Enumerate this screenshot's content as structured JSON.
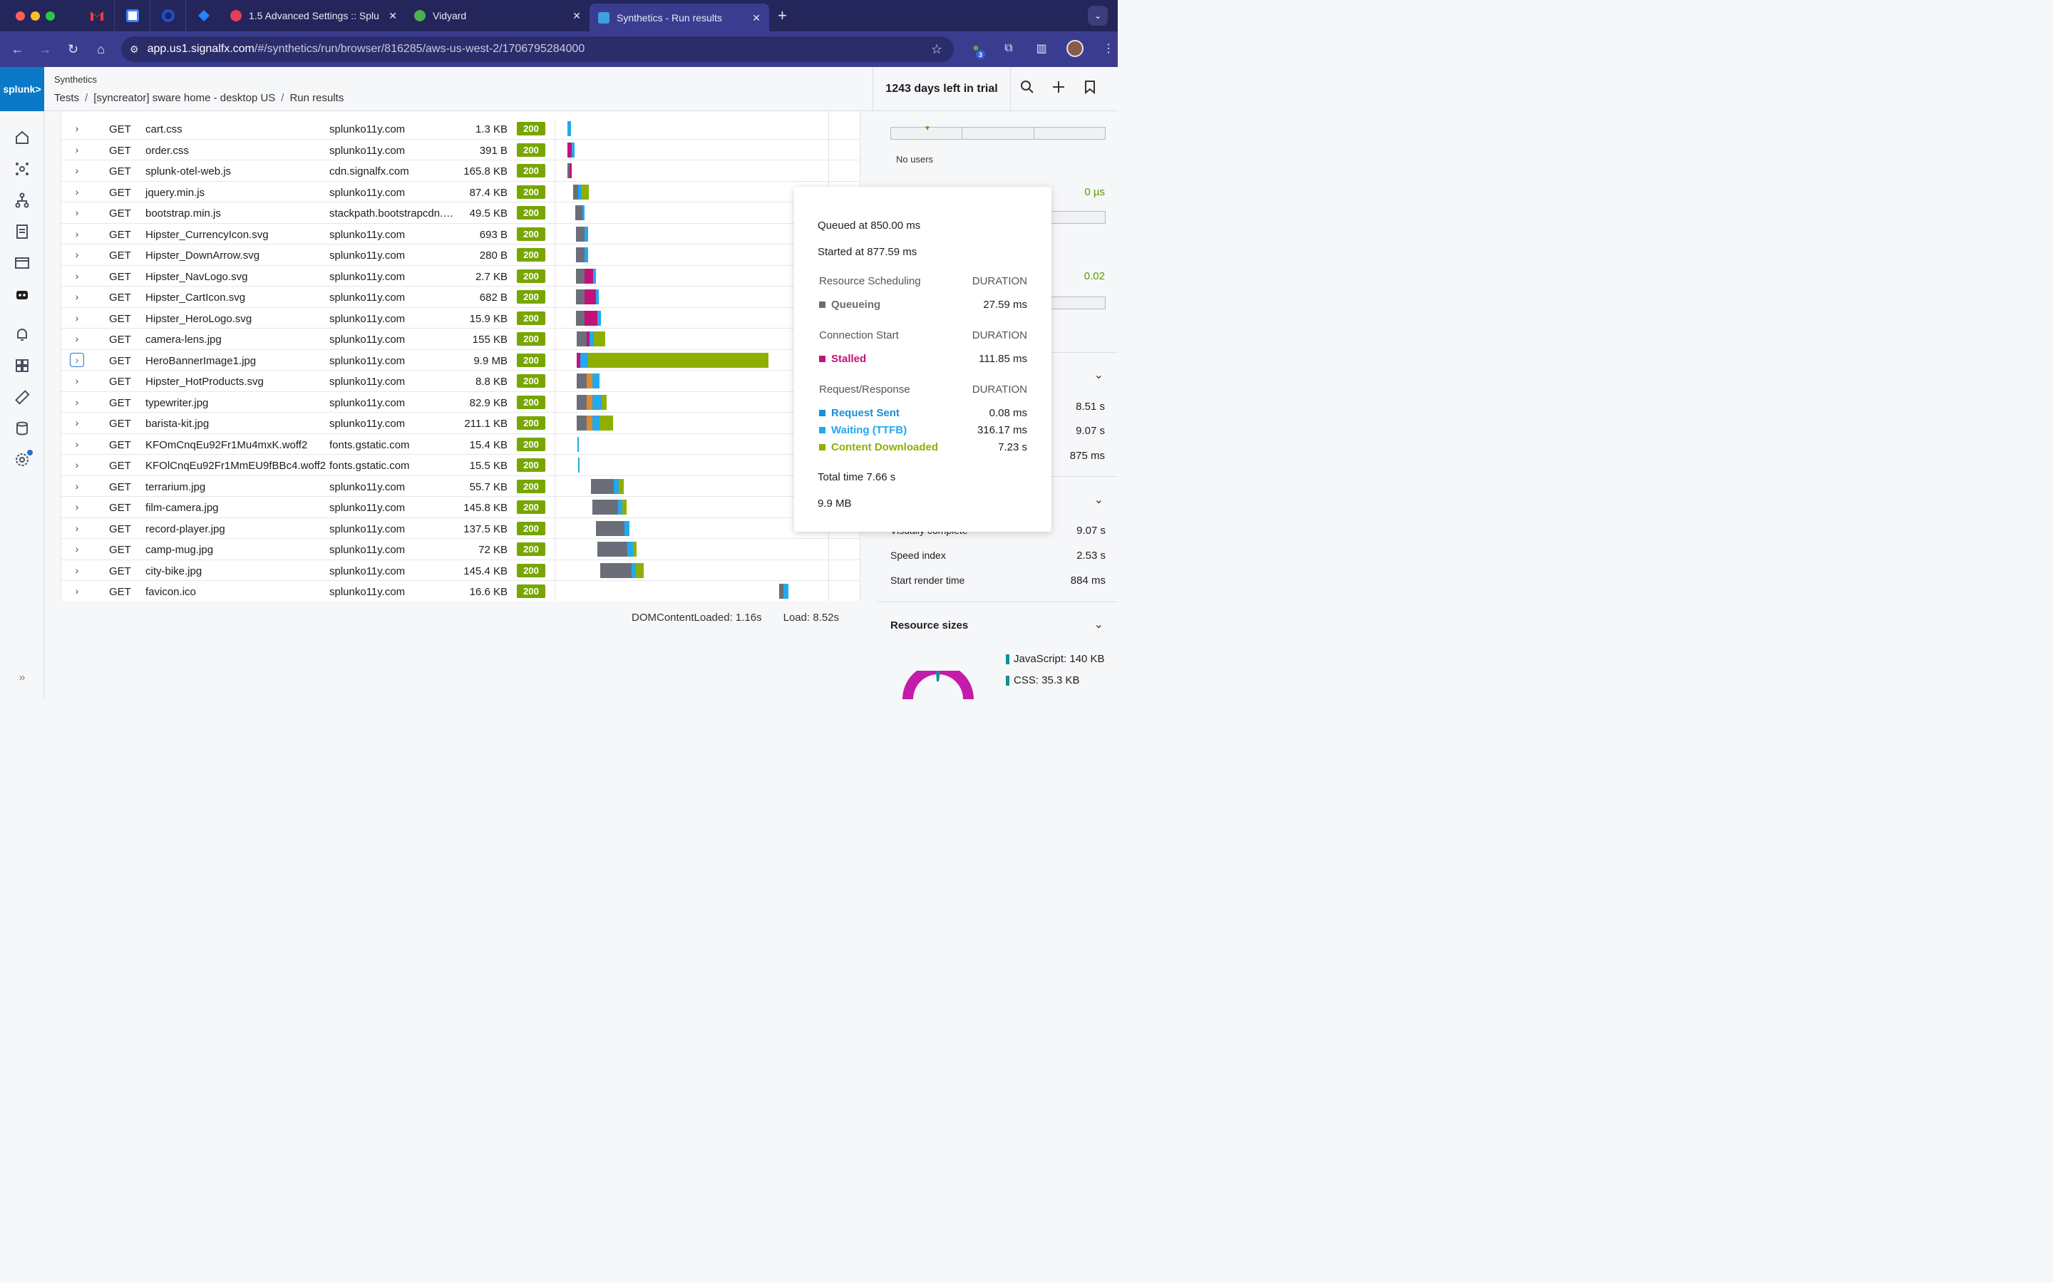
{
  "browser": {
    "tabs": [
      {
        "title": "1.5 Advanced Settings :: Splu",
        "favicon_color": "#e53d5c"
      },
      {
        "title": "Vidyard",
        "favicon_color": "#4caf50"
      },
      {
        "title": "Synthetics - Run results",
        "favicon_color": "#3fa0e0"
      }
    ],
    "url_host": "app.us1.signalfx.com",
    "url_path": "/#/synthetics/run/browser/816285/aws-us-west-2/1706795284000",
    "extension_badge": "3"
  },
  "app": {
    "logo_text": "splunk>",
    "name": "Synthetics",
    "breadcrumb": [
      "Tests",
      "[syncreator] sware home - desktop US",
      "Run results"
    ],
    "trial_text": "1243 days left in trial"
  },
  "requests": [
    {
      "method": "GET",
      "name": "cart.css",
      "host": "splunko11y.com",
      "size": "1.3 KB",
      "status": "200"
    },
    {
      "method": "GET",
      "name": "order.css",
      "host": "splunko11y.com",
      "size": "391 B",
      "status": "200"
    },
    {
      "method": "GET",
      "name": "splunk-otel-web.js",
      "host": "cdn.signalfx.com",
      "size": "165.8 KB",
      "status": "200"
    },
    {
      "method": "GET",
      "name": "jquery.min.js",
      "host": "splunko11y.com",
      "size": "87.4 KB",
      "status": "200"
    },
    {
      "method": "GET",
      "name": "bootstrap.min.js",
      "host": "stackpath.bootstrapcdn.…",
      "size": "49.5 KB",
      "status": "200"
    },
    {
      "method": "GET",
      "name": "Hipster_CurrencyIcon.svg",
      "host": "splunko11y.com",
      "size": "693 B",
      "status": "200"
    },
    {
      "method": "GET",
      "name": "Hipster_DownArrow.svg",
      "host": "splunko11y.com",
      "size": "280 B",
      "status": "200"
    },
    {
      "method": "GET",
      "name": "Hipster_NavLogo.svg",
      "host": "splunko11y.com",
      "size": "2.7 KB",
      "status": "200"
    },
    {
      "method": "GET",
      "name": "Hipster_CartIcon.svg",
      "host": "splunko11y.com",
      "size": "682 B",
      "status": "200"
    },
    {
      "method": "GET",
      "name": "Hipster_HeroLogo.svg",
      "host": "splunko11y.com",
      "size": "15.9 KB",
      "status": "200"
    },
    {
      "method": "GET",
      "name": "camera-lens.jpg",
      "host": "splunko11y.com",
      "size": "155 KB",
      "status": "200"
    },
    {
      "method": "GET",
      "name": "HeroBannerImage1.jpg",
      "host": "splunko11y.com",
      "size": "9.9 MB",
      "status": "200"
    },
    {
      "method": "GET",
      "name": "Hipster_HotProducts.svg",
      "host": "splunko11y.com",
      "size": "8.8 KB",
      "status": "200"
    },
    {
      "method": "GET",
      "name": "typewriter.jpg",
      "host": "splunko11y.com",
      "size": "82.9 KB",
      "status": "200"
    },
    {
      "method": "GET",
      "name": "barista-kit.jpg",
      "host": "splunko11y.com",
      "size": "211.1 KB",
      "status": "200"
    },
    {
      "method": "GET",
      "name": "KFOmCnqEu92Fr1Mu4mxK.woff2",
      "host": "fonts.gstatic.com",
      "size": "15.4 KB",
      "status": "200"
    },
    {
      "method": "GET",
      "name": "KFOlCnqEu92Fr1MmEU9fBBc4.woff2",
      "host": "fonts.gstatic.com",
      "size": "15.5 KB",
      "status": "200"
    },
    {
      "method": "GET",
      "name": "terrarium.jpg",
      "host": "splunko11y.com",
      "size": "55.7 KB",
      "status": "200"
    },
    {
      "method": "GET",
      "name": "film-camera.jpg",
      "host": "splunko11y.com",
      "size": "145.8 KB",
      "status": "200"
    },
    {
      "method": "GET",
      "name": "record-player.jpg",
      "host": "splunko11y.com",
      "size": "137.5 KB",
      "status": "200"
    },
    {
      "method": "GET",
      "name": "camp-mug.jpg",
      "host": "splunko11y.com",
      "size": "72 KB",
      "status": "200"
    },
    {
      "method": "GET",
      "name": "city-bike.jpg",
      "host": "splunko11y.com",
      "size": "145.4 KB",
      "status": "200"
    },
    {
      "method": "GET",
      "name": "favicon.ico",
      "host": "splunko11y.com",
      "size": "16.6 KB",
      "status": "200"
    }
  ],
  "timing_summary": {
    "dom_content_loaded": "DOMContentLoaded: 1.16s",
    "load": "Load: 8.52s"
  },
  "tooltip": {
    "queued": "Queued at 850.00 ms",
    "started": "Started at 877.59 ms",
    "section_scheduling": "Resource Scheduling",
    "section_connection": "Connection Start",
    "section_request": "Request/Response",
    "duration_header": "DURATION",
    "queueing": {
      "label": "Queueing",
      "value": "27.59 ms",
      "color": "#6b6e78"
    },
    "stalled": {
      "label": "Stalled",
      "value": "111.85 ms",
      "color": "#c2117a"
    },
    "request_sent": {
      "label": "Request Sent",
      "value": "0.08 ms",
      "color": "#1a8fd8"
    },
    "waiting": {
      "label": "Waiting (TTFB)",
      "value": "316.17 ms",
      "color": "#22a9ee"
    },
    "content_downloaded": {
      "label": "Content Downloaded",
      "value": "7.23 s",
      "color": "#8db000"
    },
    "total": "Total time 7.66 s",
    "size": "9.9 MB"
  },
  "right_panel": {
    "no_users": "No users",
    "value_1": "0 µs",
    "value_2": "0.02",
    "metric_a": "8.51 s",
    "metric_b": "9.07 s",
    "metric_c": "875 ms",
    "visually_complete_label": "Visually complete",
    "visually_complete_value": "9.07 s",
    "speed_index_label": "Speed index",
    "speed_index_value": "2.53 s",
    "start_render_label": "Start render time",
    "start_render_value": "884 ms",
    "resource_sizes_title": "Resource sizes",
    "legend_js": "JavaScript: 140 KB",
    "legend_css": "CSS: 35.3 KB"
  },
  "colors": {
    "queue": "#6b6e78",
    "stalled": "#c2117a",
    "request": "#1a8fd8",
    "waiting": "#22a9ee",
    "download": "#8db000",
    "orange": "#e08a2b",
    "status_ok": "#78a600"
  }
}
